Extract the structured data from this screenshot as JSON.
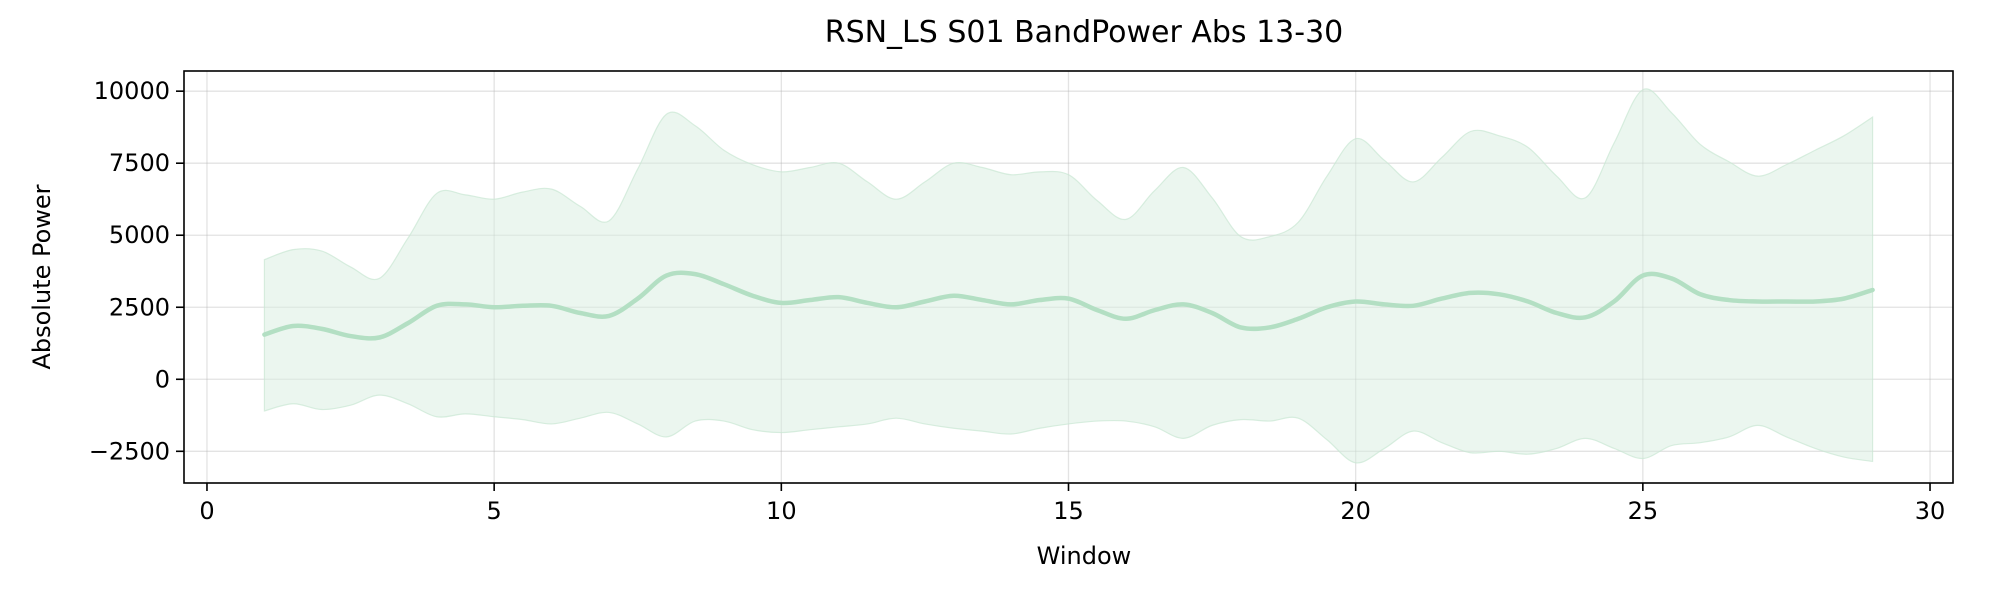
{
  "chart_data": {
    "type": "line",
    "title": "RSN_LS S01 BandPower Abs 13-30",
    "xlabel": "Window",
    "ylabel": "Absolute Power",
    "xlim": [
      -0.4,
      30.4
    ],
    "ylim": [
      -3600,
      10700
    ],
    "x_ticks": [
      0,
      5,
      10,
      15,
      20,
      25,
      30
    ],
    "x_tick_labels": [
      "0",
      "5",
      "10",
      "15",
      "20",
      "25",
      "30"
    ],
    "y_ticks": [
      -2500,
      0,
      2500,
      5000,
      7500,
      10000
    ],
    "y_tick_labels": [
      "−2500",
      "0",
      "2500",
      "5000",
      "7500",
      "10000"
    ],
    "grid": true,
    "colors": {
      "line": "#b3dfc3",
      "band": "#d8eedf",
      "band_edge": "#c9e7d3"
    },
    "series": [
      {
        "x": [
          1,
          1.5,
          2,
          2.5,
          3,
          3.5,
          4,
          4.5,
          5,
          5.5,
          6,
          6.5,
          7,
          7.5,
          8,
          8.5,
          9,
          9.5,
          10,
          10.5,
          11,
          11.5,
          12,
          12.5,
          13,
          13.5,
          14,
          14.5,
          15,
          15.5,
          16,
          16.5,
          17,
          17.5,
          18,
          18.5,
          19,
          19.5,
          20,
          20.5,
          21,
          21.5,
          22,
          22.5,
          23,
          23.5,
          24,
          24.5,
          25,
          25.5,
          26,
          26.5,
          27,
          27.5,
          28,
          28.5,
          29
        ],
        "values": [
          1550,
          1850,
          1750,
          1500,
          1450,
          1950,
          2550,
          2600,
          2500,
          2550,
          2550,
          2300,
          2200,
          2800,
          3600,
          3650,
          3300,
          2900,
          2650,
          2750,
          2850,
          2650,
          2500,
          2700,
          2900,
          2750,
          2600,
          2750,
          2800,
          2400,
          2100,
          2400,
          2600,
          2300,
          1800,
          1800,
          2100,
          2500,
          2700,
          2600,
          2550,
          2800,
          3000,
          2950,
          2700,
          2300,
          2150,
          2700,
          3600,
          3500,
          2950,
          2750,
          2700,
          2700,
          2700,
          2800,
          3100
        ],
        "upper": [
          4150,
          4500,
          4450,
          3900,
          3500,
          4900,
          6450,
          6400,
          6250,
          6500,
          6600,
          6000,
          5500,
          7300,
          9200,
          8800,
          7950,
          7450,
          7200,
          7350,
          7500,
          6850,
          6250,
          6850,
          7500,
          7350,
          7100,
          7200,
          7100,
          6200,
          5550,
          6550,
          7350,
          6300,
          4950,
          4950,
          5450,
          7050,
          8350,
          7600,
          6850,
          7700,
          8600,
          8450,
          8050,
          7050,
          6300,
          8200,
          10050,
          9250,
          8150,
          7550,
          7050,
          7450,
          7950,
          8450,
          9100
        ],
        "lower": [
          -1100,
          -850,
          -1050,
          -900,
          -550,
          -850,
          -1300,
          -1200,
          -1300,
          -1400,
          -1550,
          -1350,
          -1150,
          -1550,
          -2000,
          -1450,
          -1450,
          -1750,
          -1850,
          -1750,
          -1650,
          -1550,
          -1350,
          -1550,
          -1700,
          -1800,
          -1900,
          -1700,
          -1550,
          -1450,
          -1450,
          -1650,
          -2050,
          -1600,
          -1400,
          -1450,
          -1350,
          -2100,
          -2900,
          -2400,
          -1800,
          -2200,
          -2550,
          -2500,
          -2600,
          -2400,
          -2050,
          -2400,
          -2750,
          -2300,
          -2200,
          -2000,
          -1600,
          -2000,
          -2400,
          -2700,
          -2850
        ]
      }
    ]
  }
}
